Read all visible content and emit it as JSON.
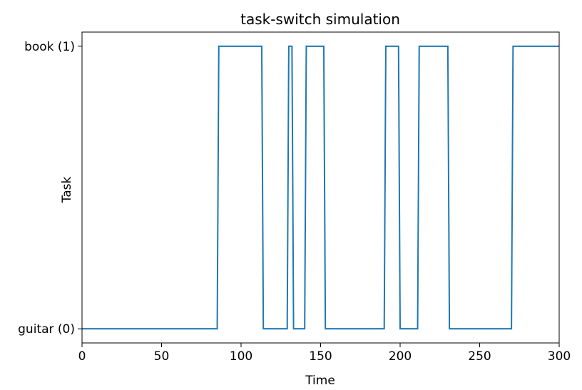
{
  "chart_data": {
    "type": "line",
    "title": "task-switch simulation",
    "xlabel": "Time",
    "ylabel": "Task",
    "xlim": [
      0,
      300
    ],
    "ylim": [
      -0.05,
      1.05
    ],
    "grid": false,
    "x_ticks": [
      0,
      50,
      100,
      150,
      200,
      250,
      300
    ],
    "x_tick_labels": [
      "0",
      "50",
      "100",
      "150",
      "200",
      "250",
      "300"
    ],
    "y_ticks": [
      0,
      1
    ],
    "y_tick_labels": [
      "guitar (0)",
      "book (1)"
    ],
    "line_color": "#1f77b4",
    "series": [
      {
        "x": [
          0,
          85,
          86,
          113,
          114,
          129,
          130,
          132,
          133,
          140,
          141,
          152,
          153,
          190,
          191,
          199,
          200,
          211,
          212,
          230,
          231,
          270,
          271,
          300
        ],
        "y": [
          0,
          0,
          1,
          1,
          0,
          0,
          1,
          1,
          0,
          0,
          1,
          1,
          0,
          0,
          1,
          1,
          0,
          0,
          1,
          1,
          0,
          0,
          1,
          1
        ]
      }
    ]
  }
}
